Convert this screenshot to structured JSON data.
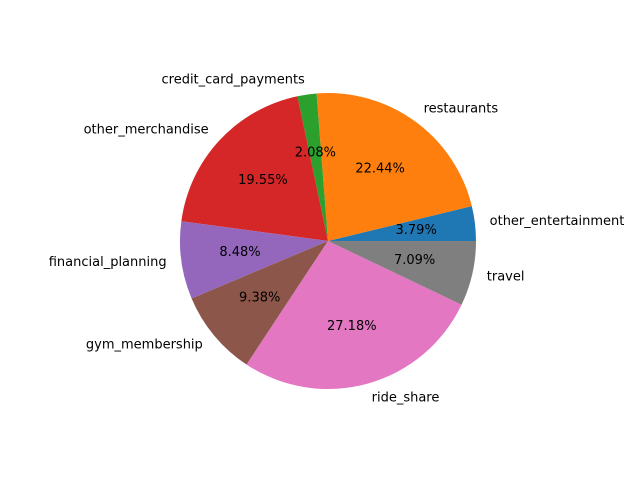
{
  "chart_data": {
    "type": "pie",
    "start_angle_deg": 0,
    "direction": "counterclockwise",
    "slices": [
      {
        "label": "other_entertainment",
        "value": 3.79,
        "pct_label": "3.79%",
        "color": "#1f77b4"
      },
      {
        "label": "restaurants",
        "value": 22.44,
        "pct_label": "22.44%",
        "color": "#ff7f0e"
      },
      {
        "label": "credit_card_payments",
        "value": 2.08,
        "pct_label": "2.08%",
        "color": "#2ca02c"
      },
      {
        "label": "other_merchandise",
        "value": 19.55,
        "pct_label": "19.55%",
        "color": "#d62728"
      },
      {
        "label": "financial_planning",
        "value": 8.48,
        "pct_label": "8.48%",
        "color": "#9467bd"
      },
      {
        "label": "gym_membership",
        "value": 9.38,
        "pct_label": "9.38%",
        "color": "#8c564b"
      },
      {
        "label": "ride_share",
        "value": 27.18,
        "pct_label": "27.18%",
        "color": "#e377c2"
      },
      {
        "label": "travel",
        "value": 7.09,
        "pct_label": "7.09%",
        "color": "#7f7f7f"
      }
    ]
  }
}
